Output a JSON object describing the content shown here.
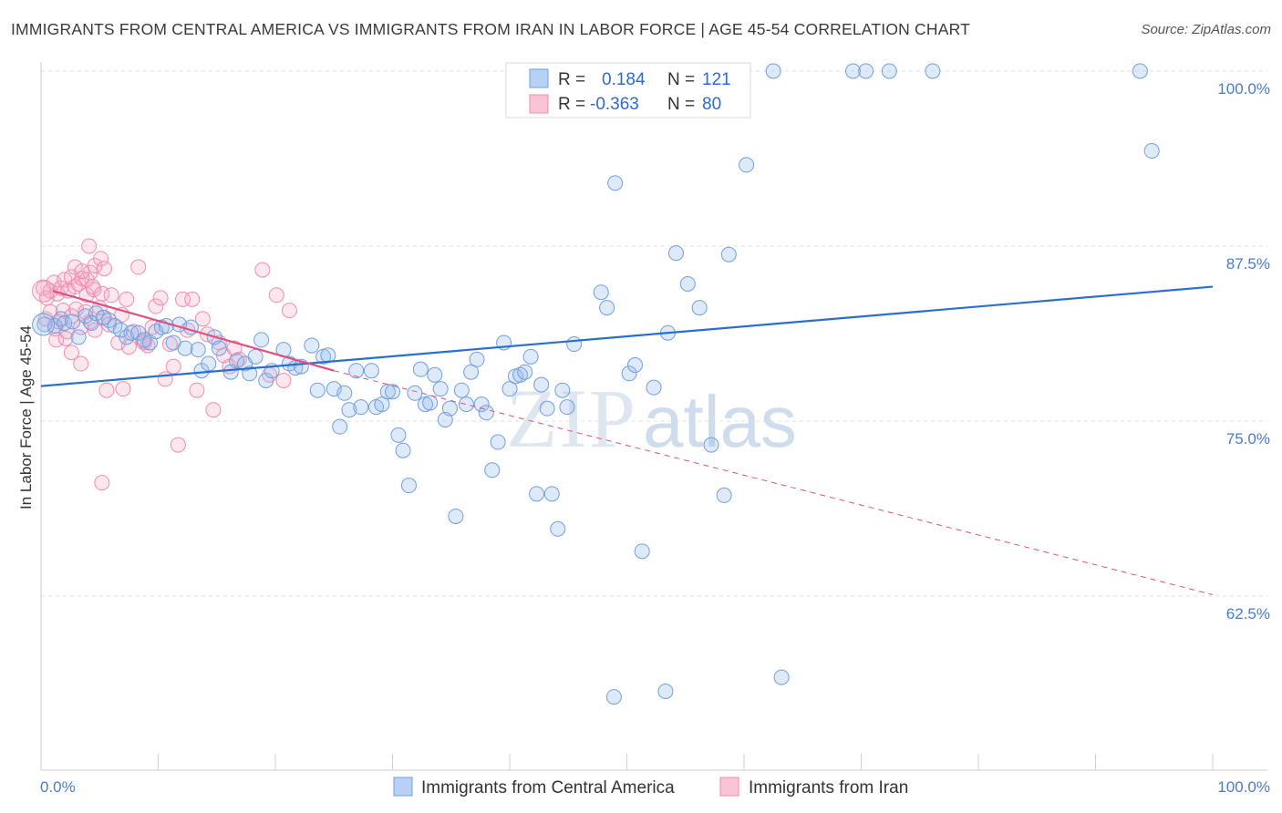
{
  "title": "IMMIGRANTS FROM CENTRAL AMERICA VS IMMIGRANTS FROM IRAN IN LABOR FORCE | AGE 45-54 CORRELATION CHART",
  "source": "Source: ZipAtlas.com",
  "colors": {
    "blue": "#6f9fe0",
    "blue_line": "#2a6fcf",
    "pink": "#f08bb0",
    "pink_line": "#e0507f",
    "axis_text": "#4a7cc8"
  },
  "legend": {
    "blue": {
      "r_label": "R = ",
      "r_value": "0.184",
      "n_label": "N = ",
      "n_value": "121"
    },
    "pink": {
      "r_label": "R = ",
      "r_value": "-0.363",
      "n_label": "N = ",
      "n_value": "80"
    }
  },
  "chart_data": {
    "type": "scatter",
    "title": "IMMIGRANTS FROM CENTRAL AMERICA VS IMMIGRANTS FROM IRAN IN LABOR FORCE | AGE 45-54 CORRELATION CHART",
    "xlabel": "",
    "ylabel": "In Labor Force | Age 45-54",
    "xlim": [
      0,
      100
    ],
    "ylim": [
      50,
      101
    ],
    "x_tick_labels": [
      "0.0%",
      "100.0%"
    ],
    "y_ticks": [
      62.5,
      75.0,
      87.5,
      100.0
    ],
    "y_tick_labels": [
      "62.5%",
      "75.0%",
      "87.5%",
      "100.0%"
    ],
    "grid": true,
    "legend_position": "top-center",
    "series": [
      {
        "name": "Immigrants from Central America",
        "r": 0.184,
        "n": 121,
        "trend": {
          "x": [
            0,
            100
          ],
          "y": [
            77.5,
            84.6
          ]
        },
        "points": [
          [
            0.3,
            81.9
          ],
          [
            1.2,
            81.8
          ],
          [
            1.7,
            82.3
          ],
          [
            2.0,
            82.0
          ],
          [
            2.7,
            82.1
          ],
          [
            3.2,
            81.0
          ],
          [
            3.8,
            82.5
          ],
          [
            4.3,
            82.0
          ],
          [
            4.7,
            82.7
          ],
          [
            5.3,
            82.4
          ],
          [
            5.8,
            82.2
          ],
          [
            6.3,
            81.8
          ],
          [
            6.8,
            81.5
          ],
          [
            7.3,
            81.0
          ],
          [
            7.7,
            81.3
          ],
          [
            8.3,
            81.3
          ],
          [
            8.8,
            80.8
          ],
          [
            9.3,
            80.6
          ],
          [
            9.8,
            81.4
          ],
          [
            10.3,
            81.7
          ],
          [
            10.7,
            81.8
          ],
          [
            11.3,
            80.6
          ],
          [
            11.8,
            81.9
          ],
          [
            12.3,
            80.2
          ],
          [
            12.8,
            81.7
          ],
          [
            13.7,
            78.6
          ],
          [
            13.4,
            80.1
          ],
          [
            14.3,
            79.1
          ],
          [
            14.8,
            81.0
          ],
          [
            15.2,
            80.2
          ],
          [
            16.2,
            78.5
          ],
          [
            16.7,
            79.3
          ],
          [
            17.4,
            79.1
          ],
          [
            17.8,
            78.4
          ],
          [
            18.3,
            79.6
          ],
          [
            18.8,
            80.8
          ],
          [
            19.2,
            77.9
          ],
          [
            19.7,
            78.6
          ],
          [
            20.7,
            80.1
          ],
          [
            21.2,
            79.1
          ],
          [
            21.7,
            78.8
          ],
          [
            22.2,
            78.9
          ],
          [
            23.1,
            80.4
          ],
          [
            23.6,
            77.2
          ],
          [
            24.1,
            79.6
          ],
          [
            24.5,
            79.7
          ],
          [
            25.0,
            77.3
          ],
          [
            25.5,
            74.6
          ],
          [
            25.9,
            77.0
          ],
          [
            26.3,
            75.8
          ],
          [
            26.9,
            78.6
          ],
          [
            27.3,
            76.0
          ],
          [
            28.2,
            78.6
          ],
          [
            28.6,
            76.0
          ],
          [
            29.1,
            76.2
          ],
          [
            29.6,
            77.1
          ],
          [
            30.0,
            77.1
          ],
          [
            30.5,
            74.0
          ],
          [
            30.9,
            72.9
          ],
          [
            31.4,
            70.4
          ],
          [
            31.9,
            77.0
          ],
          [
            32.4,
            78.7
          ],
          [
            32.8,
            76.2
          ],
          [
            33.2,
            76.3
          ],
          [
            33.6,
            78.3
          ],
          [
            34.1,
            77.3
          ],
          [
            34.5,
            75.1
          ],
          [
            34.9,
            75.9
          ],
          [
            35.4,
            68.2
          ],
          [
            35.9,
            77.2
          ],
          [
            36.3,
            76.2
          ],
          [
            36.7,
            78.5
          ],
          [
            37.2,
            79.4
          ],
          [
            37.6,
            76.2
          ],
          [
            38.0,
            75.6
          ],
          [
            38.5,
            71.5
          ],
          [
            39.0,
            73.5
          ],
          [
            39.5,
            80.6
          ],
          [
            40.0,
            77.3
          ],
          [
            40.5,
            78.2
          ],
          [
            40.9,
            78.3
          ],
          [
            41.3,
            78.5
          ],
          [
            41.8,
            79.6
          ],
          [
            42.3,
            69.8
          ],
          [
            42.7,
            77.6
          ],
          [
            43.2,
            75.9
          ],
          [
            43.6,
            69.8
          ],
          [
            44.1,
            67.3
          ],
          [
            44.5,
            77.2
          ],
          [
            44.9,
            76.0
          ],
          [
            45.5,
            80.5
          ],
          [
            47.8,
            84.2
          ],
          [
            48.3,
            83.1
          ],
          [
            49.0,
            92.0
          ],
          [
            50.2,
            78.4
          ],
          [
            50.7,
            79.0
          ],
          [
            51.3,
            65.7
          ],
          [
            52.3,
            77.4
          ],
          [
            53.5,
            81.3
          ],
          [
            54.2,
            87.0
          ],
          [
            55.2,
            84.8
          ],
          [
            56.2,
            83.1
          ],
          [
            57.2,
            73.3
          ],
          [
            58.7,
            86.9
          ],
          [
            58.3,
            69.7
          ],
          [
            60.2,
            93.3
          ],
          [
            62.5,
            100.0
          ],
          [
            63.2,
            56.7
          ],
          [
            48.3,
            100.0
          ],
          [
            50.1,
            100.0
          ],
          [
            58.8,
            100.0
          ],
          [
            72.4,
            100.0
          ],
          [
            69.3,
            100.0
          ],
          [
            76.1,
            100.0
          ],
          [
            70.4,
            100.0
          ],
          [
            93.8,
            100.0
          ],
          [
            94.8,
            94.3
          ],
          [
            48.9,
            55.3
          ],
          [
            53.3,
            55.7
          ]
        ]
      },
      {
        "name": "Immigrants from Iran",
        "r": -0.363,
        "n": 80,
        "trend": {
          "x": [
            1,
            25
          ],
          "y": [
            84.3,
            78.6
          ]
        },
        "trend_extended": {
          "x": [
            25,
            100
          ],
          "y": [
            78.6,
            62.6
          ]
        },
        "points": [
          [
            0.2,
            84.5
          ],
          [
            0.5,
            83.8
          ],
          [
            0.8,
            84.3
          ],
          [
            1.1,
            84.9
          ],
          [
            1.4,
            84.1
          ],
          [
            1.7,
            84.5
          ],
          [
            2.0,
            85.1
          ],
          [
            2.3,
            84.3
          ],
          [
            2.6,
            85.3
          ],
          [
            2.9,
            84.6
          ],
          [
            3.2,
            84.8
          ],
          [
            3.5,
            85.2
          ],
          [
            3.9,
            84.0
          ],
          [
            4.2,
            85.6
          ],
          [
            4.5,
            84.4
          ],
          [
            0.4,
            82.3
          ],
          [
            0.8,
            82.8
          ],
          [
            1.2,
            81.6
          ],
          [
            1.5,
            82.1
          ],
          [
            1.9,
            82.9
          ],
          [
            2.2,
            81.4
          ],
          [
            2.6,
            82.5
          ],
          [
            3.0,
            83.0
          ],
          [
            3.4,
            81.7
          ],
          [
            3.8,
            82.8
          ],
          [
            4.2,
            82.1
          ],
          [
            4.6,
            81.5
          ],
          [
            5.0,
            83.1
          ],
          [
            5.4,
            82.4
          ],
          [
            5.8,
            81.9
          ],
          [
            1.3,
            80.8
          ],
          [
            2.1,
            80.9
          ],
          [
            2.6,
            79.9
          ],
          [
            3.4,
            79.1
          ],
          [
            4.1,
            87.5
          ],
          [
            4.6,
            86.1
          ],
          [
            5.1,
            86.6
          ],
          [
            5.4,
            85.9
          ],
          [
            3.9,
            85.1
          ],
          [
            2.9,
            86.0
          ],
          [
            3.5,
            85.7
          ],
          [
            4.4,
            84.6
          ],
          [
            5.2,
            84.1
          ],
          [
            6.0,
            84.0
          ],
          [
            6.6,
            80.6
          ],
          [
            6.9,
            82.6
          ],
          [
            7.3,
            83.7
          ],
          [
            7.5,
            80.3
          ],
          [
            7.9,
            81.4
          ],
          [
            8.3,
            86.0
          ],
          [
            8.7,
            80.7
          ],
          [
            9.1,
            80.4
          ],
          [
            9.5,
            81.7
          ],
          [
            9.8,
            83.2
          ],
          [
            10.2,
            83.8
          ],
          [
            10.6,
            78.0
          ],
          [
            11.0,
            80.5
          ],
          [
            11.3,
            78.9
          ],
          [
            11.7,
            73.3
          ],
          [
            12.1,
            83.7
          ],
          [
            12.5,
            81.5
          ],
          [
            12.9,
            83.7
          ],
          [
            13.3,
            77.2
          ],
          [
            13.8,
            82.3
          ],
          [
            14.2,
            81.2
          ],
          [
            14.7,
            75.8
          ],
          [
            15.2,
            80.6
          ],
          [
            15.6,
            79.7
          ],
          [
            16.1,
            78.9
          ],
          [
            16.5,
            80.2
          ],
          [
            16.9,
            79.4
          ],
          [
            18.9,
            85.8
          ],
          [
            19.5,
            78.3
          ],
          [
            20.1,
            84.0
          ],
          [
            20.7,
            77.9
          ],
          [
            21.2,
            82.9
          ],
          [
            5.2,
            70.6
          ],
          [
            5.6,
            77.2
          ],
          [
            7.0,
            77.3
          ],
          [
            8.8,
            80.6
          ]
        ]
      }
    ]
  },
  "bottom_legend": [
    {
      "label": "Immigrants from Central America"
    },
    {
      "label": "Immigrants from Iran"
    }
  ],
  "watermark": "ZIPatlas"
}
